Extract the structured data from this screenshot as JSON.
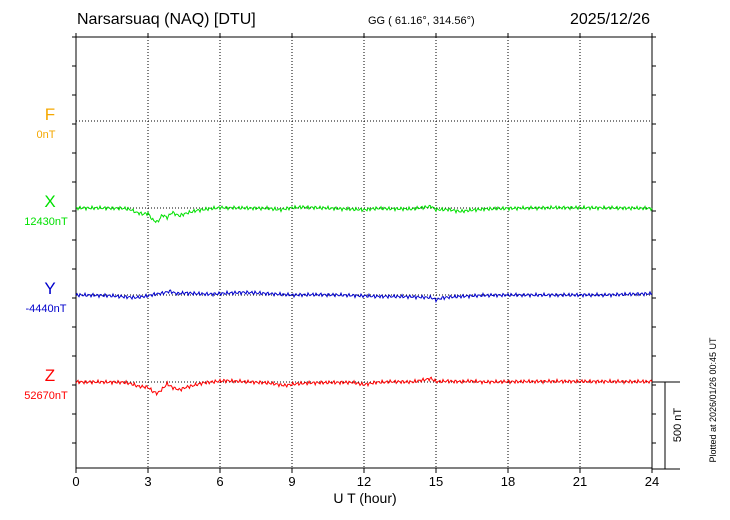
{
  "header": {
    "station": "Narsarsuaq (NAQ)  [DTU]",
    "coords": "GG ( 61.16°, 314.56°)",
    "date": "2025/12/26"
  },
  "plotted_note": "Plotted at 2026/01/26 00:45 UT",
  "scale_label": "500 nT",
  "chart_data": {
    "type": "line",
    "xlabel": "U T (hour)",
    "xlim": [
      0,
      24
    ],
    "xticks": [
      "0",
      "3",
      "6",
      "9",
      "12",
      "15",
      "18",
      "21",
      "24"
    ],
    "grid": true,
    "scale_bar_nT": 500,
    "components": [
      {
        "name": "F",
        "baseline_label": "0nT",
        "color": "#f5a800",
        "baseline": 0,
        "data": []
      },
      {
        "name": "X",
        "baseline_label": "12430nT",
        "color": "#00e000",
        "baseline": 12430,
        "data": [
          [
            0,
            12430
          ],
          [
            1,
            12430
          ],
          [
            2,
            12428
          ],
          [
            2.3,
            12420
          ],
          [
            2.5,
            12405
          ],
          [
            2.8,
            12395
          ],
          [
            3,
            12400
          ],
          [
            3.2,
            12360
          ],
          [
            3.4,
            12350
          ],
          [
            3.6,
            12390
          ],
          [
            3.8,
            12375
          ],
          [
            4,
            12405
          ],
          [
            4.3,
            12385
          ],
          [
            4.6,
            12400
          ],
          [
            5,
            12415
          ],
          [
            5.5,
            12425
          ],
          [
            6,
            12432
          ],
          [
            7,
            12430
          ],
          [
            8,
            12428
          ],
          [
            8.5,
            12420
          ],
          [
            9,
            12432
          ],
          [
            9.5,
            12435
          ],
          [
            10,
            12432
          ],
          [
            11,
            12426
          ],
          [
            12,
            12420
          ],
          [
            12.5,
            12428
          ],
          [
            13,
            12426
          ],
          [
            14,
            12424
          ],
          [
            14.8,
            12440
          ],
          [
            15,
            12420
          ],
          [
            15.5,
            12422
          ],
          [
            16,
            12410
          ],
          [
            16.5,
            12418
          ],
          [
            17,
            12424
          ],
          [
            18,
            12428
          ],
          [
            20,
            12432
          ],
          [
            22,
            12431
          ],
          [
            24,
            12428
          ]
        ]
      },
      {
        "name": "Y",
        "baseline_label": "-4440nT",
        "color": "#0000cc",
        "baseline": -4440,
        "data": [
          [
            0,
            -4440
          ],
          [
            1,
            -4442
          ],
          [
            1.5,
            -4445
          ],
          [
            2,
            -4450
          ],
          [
            2.5,
            -4455
          ],
          [
            3,
            -4445
          ],
          [
            3.3,
            -4435
          ],
          [
            3.6,
            -4430
          ],
          [
            3.9,
            -4418
          ],
          [
            4.2,
            -4432
          ],
          [
            4.6,
            -4428
          ],
          [
            5,
            -4432
          ],
          [
            5.5,
            -4435
          ],
          [
            6,
            -4432
          ],
          [
            6.5,
            -4428
          ],
          [
            7,
            -4425
          ],
          [
            7.5,
            -4428
          ],
          [
            8,
            -4432
          ],
          [
            9,
            -4440
          ],
          [
            10,
            -4438
          ],
          [
            11,
            -4440
          ],
          [
            12,
            -4445
          ],
          [
            12.5,
            -4448
          ],
          [
            13,
            -4448
          ],
          [
            14,
            -4450
          ],
          [
            14.8,
            -4455
          ],
          [
            15,
            -4468
          ],
          [
            15.3,
            -4455
          ],
          [
            16,
            -4448
          ],
          [
            17,
            -4442
          ],
          [
            18,
            -4440
          ],
          [
            20,
            -4440
          ],
          [
            22,
            -4440
          ],
          [
            24,
            -4432
          ]
        ]
      },
      {
        "name": "Z",
        "baseline_label": "52670nT",
        "color": "#ff0000",
        "baseline": 52670,
        "data": [
          [
            0,
            52670
          ],
          [
            1,
            52670
          ],
          [
            2,
            52668
          ],
          [
            2.3,
            52660
          ],
          [
            2.6,
            52645
          ],
          [
            3,
            52640
          ],
          [
            3.2,
            52615
          ],
          [
            3.4,
            52605
          ],
          [
            3.6,
            52630
          ],
          [
            3.8,
            52660
          ],
          [
            4,
            52640
          ],
          [
            4.3,
            52625
          ],
          [
            4.6,
            52640
          ],
          [
            4.9,
            52650
          ],
          [
            5.3,
            52665
          ],
          [
            5.8,
            52672
          ],
          [
            6.2,
            52678
          ],
          [
            7,
            52672
          ],
          [
            8,
            52665
          ],
          [
            8.7,
            52650
          ],
          [
            9.2,
            52660
          ],
          [
            9.8,
            52665
          ],
          [
            10.5,
            52667
          ],
          [
            11.5,
            52668
          ],
          [
            12,
            52655
          ],
          [
            12.5,
            52668
          ],
          [
            13.3,
            52672
          ],
          [
            14,
            52670
          ],
          [
            14.8,
            52690
          ],
          [
            15,
            52672
          ],
          [
            15.5,
            52675
          ],
          [
            16,
            52672
          ],
          [
            16.5,
            52675
          ],
          [
            17,
            52670
          ],
          [
            18,
            52672
          ],
          [
            20,
            52674
          ],
          [
            22,
            52673
          ],
          [
            24,
            52672
          ]
        ]
      }
    ]
  }
}
